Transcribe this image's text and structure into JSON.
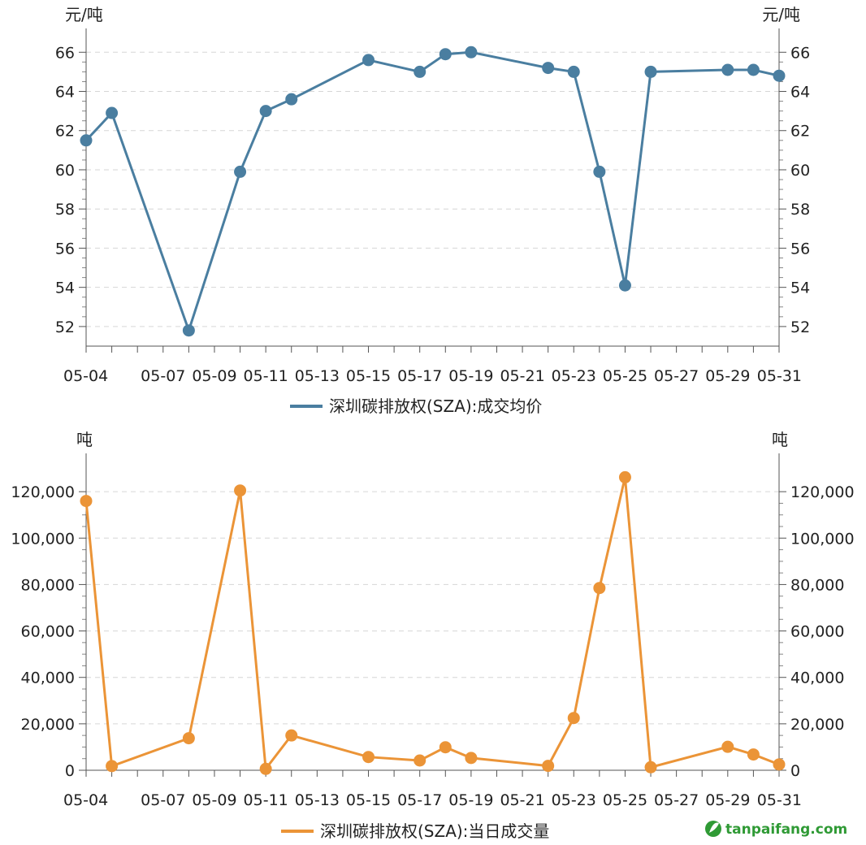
{
  "chart_data": [
    {
      "type": "line",
      "title": "",
      "y_unit_left": "元/吨",
      "y_unit_right": "元/吨",
      "x_tick_labels": [
        "05-04",
        "05-07",
        "05-09",
        "05-11",
        "05-13",
        "05-15",
        "05-17",
        "05-19",
        "05-21",
        "05-23",
        "05-25",
        "05-27",
        "05-29",
        "05-31"
      ],
      "ylim": [
        51,
        66.8
      ],
      "y_ticks": [
        52,
        54,
        56,
        58,
        60,
        62,
        64,
        66
      ],
      "y_tick_labels": [
        "52",
        "54",
        "56",
        "58",
        "60",
        "62",
        "64",
        "66"
      ],
      "grid": true,
      "legend_position": "bottom-center",
      "series": [
        {
          "name": "深圳碳排放权(SZA):成交均价",
          "color": "#4a7ea0",
          "x": [
            "05-04",
            "05-05",
            "05-08",
            "05-10",
            "05-11",
            "05-12",
            "05-15",
            "05-17",
            "05-18",
            "05-19",
            "05-22",
            "05-23",
            "05-24",
            "05-25",
            "05-26",
            "05-29",
            "05-30",
            "05-31"
          ],
          "values": [
            61.5,
            62.9,
            51.8,
            59.9,
            63.0,
            63.6,
            65.6,
            65.0,
            65.9,
            66.0,
            65.2,
            65.0,
            59.9,
            54.1,
            65.0,
            65.1,
            65.1,
            64.8
          ]
        }
      ]
    },
    {
      "type": "line",
      "title": "",
      "y_unit_left": "吨",
      "y_unit_right": "吨",
      "x_tick_labels": [
        "05-04",
        "05-07",
        "05-09",
        "05-11",
        "05-13",
        "05-15",
        "05-17",
        "05-19",
        "05-21",
        "05-23",
        "05-25",
        "05-27",
        "05-29",
        "05-31"
      ],
      "ylim": [
        0,
        133000
      ],
      "y_ticks": [
        0,
        20000,
        40000,
        60000,
        80000,
        100000,
        120000
      ],
      "y_tick_labels": [
        "0",
        "20,000",
        "40,000",
        "60,000",
        "80,000",
        "100,000",
        "120,000"
      ],
      "grid": true,
      "legend_position": "bottom-center",
      "series": [
        {
          "name": "深圳碳排放权(SZA):当日成交量",
          "color": "#eb9437",
          "x": [
            "05-04",
            "05-05",
            "05-08",
            "05-10",
            "05-11",
            "05-12",
            "05-15",
            "05-17",
            "05-18",
            "05-19",
            "05-22",
            "05-23",
            "05-24",
            "05-25",
            "05-26",
            "05-29",
            "05-30",
            "05-31"
          ],
          "values": [
            116000,
            1800,
            13800,
            120500,
            600,
            15000,
            5700,
            4200,
            9900,
            5300,
            1900,
            22500,
            78500,
            126200,
            1300,
            10100,
            6800,
            2500
          ]
        }
      ]
    }
  ],
  "watermark": {
    "text": "tanpaifang.com",
    "logo_icon": "leaf-logo-icon",
    "color": "#2f9a35"
  }
}
